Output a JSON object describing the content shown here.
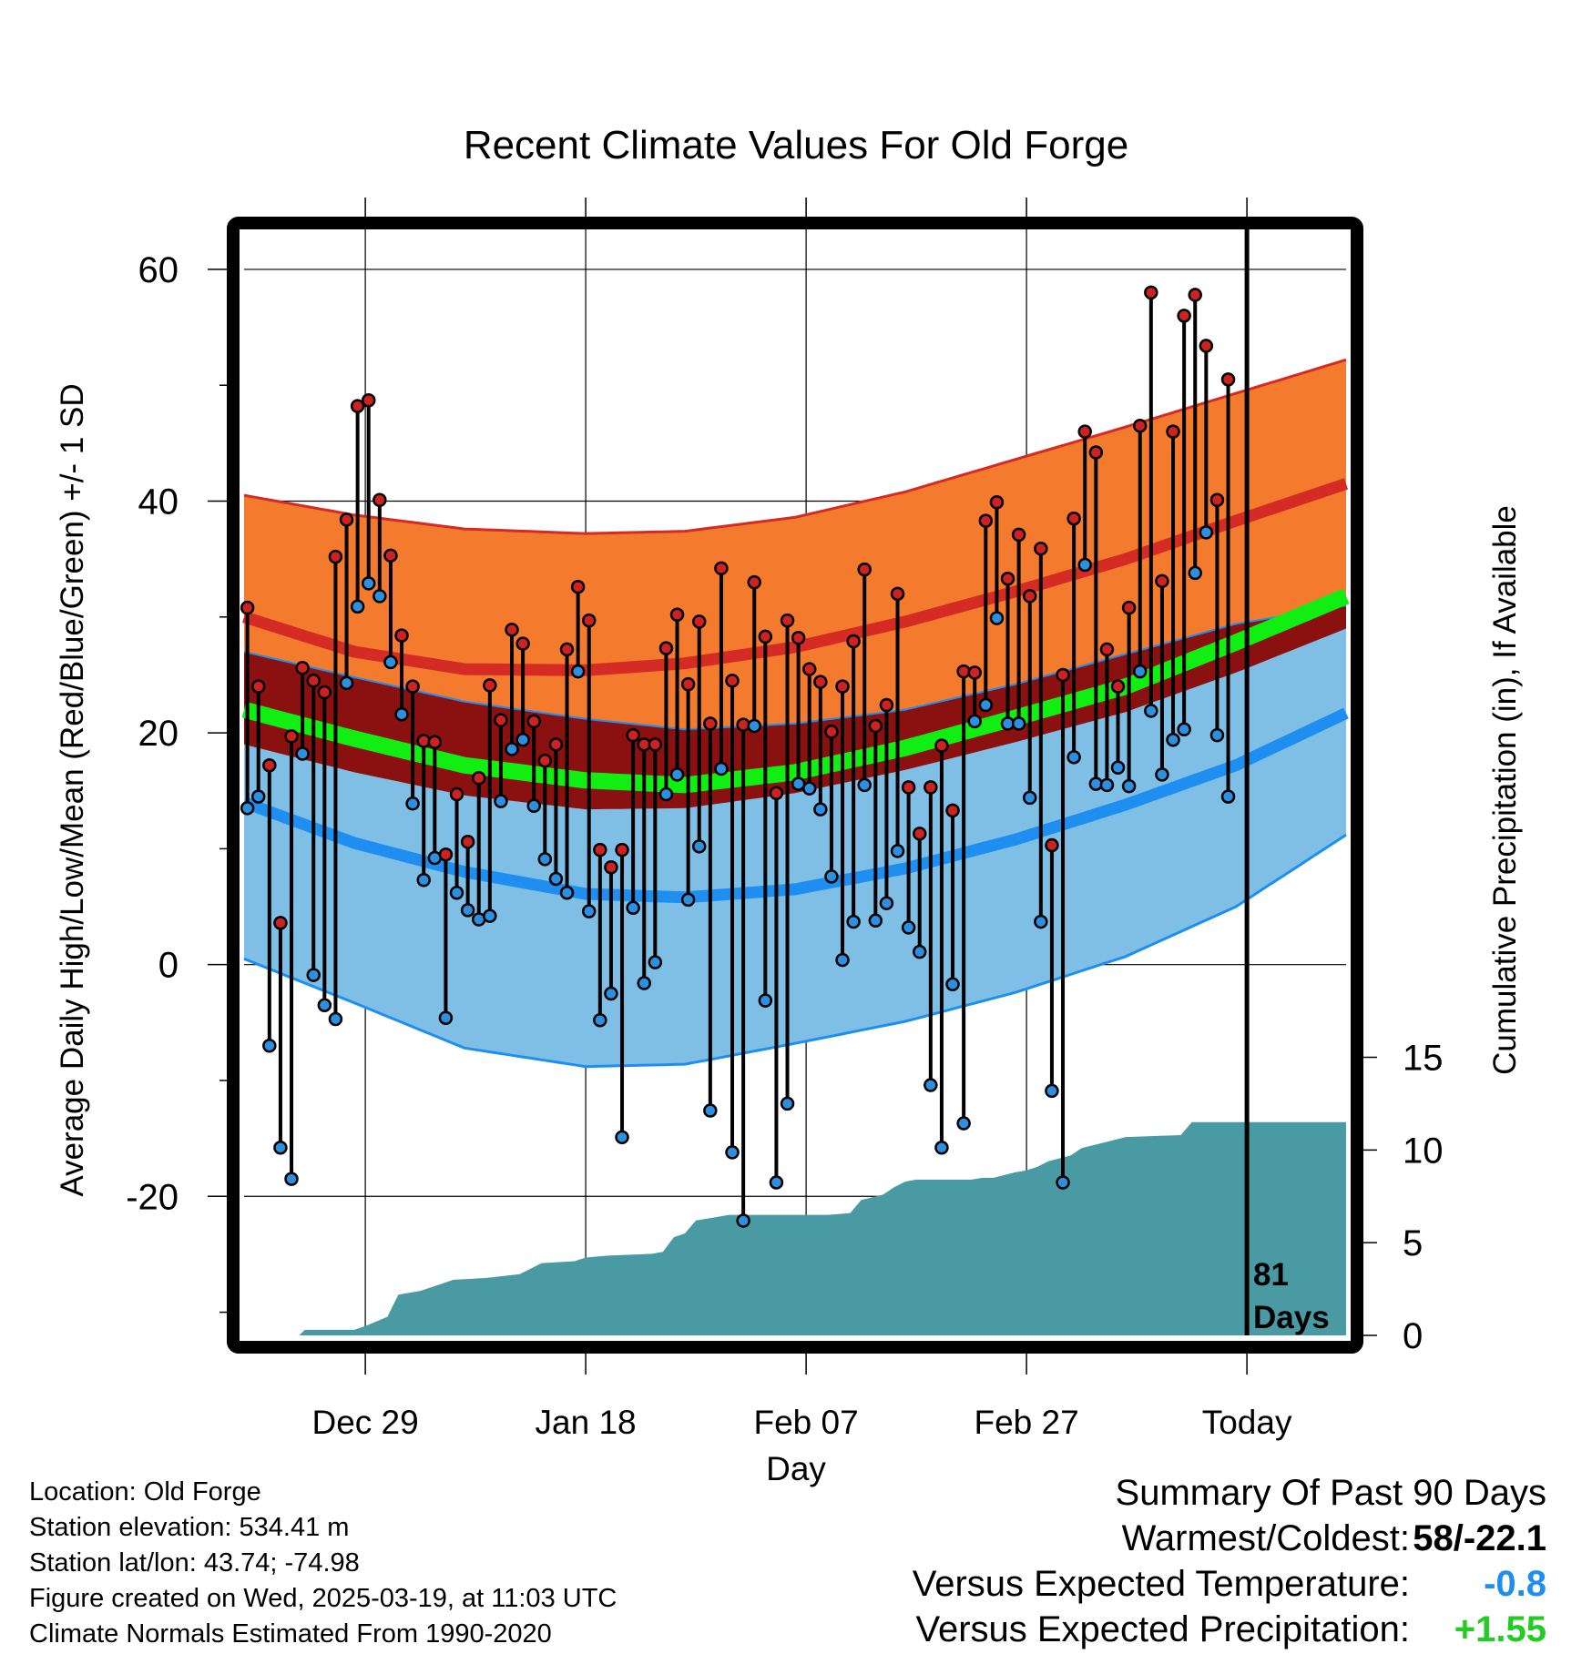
{
  "chart_data": {
    "type": "line",
    "title": "Recent Climate Values For Old Forge",
    "xlabel": "Day",
    "ylabel": "Average Daily High/Low/Mean (Red/Blue/Green) +/- 1 SD",
    "y2label": "Cumulative Precipitation (in), If Available",
    "ylim": [
      -32,
      64
    ],
    "y2lim": [
      0,
      60
    ],
    "xlim": [
      0,
      100
    ],
    "yticks": [
      -20,
      0,
      20,
      40,
      60
    ],
    "y2ticks": [
      0,
      5,
      10,
      15
    ],
    "xticks": [
      {
        "day": 11,
        "label": "Dec 29"
      },
      {
        "day": 31,
        "label": "Jan 18"
      },
      {
        "day": 51,
        "label": "Feb 07"
      },
      {
        "day": 71,
        "label": "Feb 27"
      },
      {
        "day": 91,
        "label": "Today"
      }
    ],
    "marker_day": 91,
    "marker_label_1": "81",
    "marker_label_2": "Days",
    "grid": true,
    "colors": {
      "high_band": "#f47b2e",
      "high_mean": "#d52b25",
      "mean_band": "#8b1010",
      "mean_line": "#11ee11",
      "low_band": "#7fbfe6",
      "low_mean": "#1e8ff0",
      "precip": "#4a9aa4",
      "high_point": "#cc2222",
      "low_point": "#2d8fe0"
    },
    "normals_days": [
      0,
      10,
      20,
      31,
      40,
      50,
      60,
      70,
      80,
      90,
      100
    ],
    "normal_high": [
      30,
      27,
      25.5,
      25.4,
      26,
      27.4,
      29.6,
      32.2,
      35,
      38.3,
      41.5
    ],
    "normal_high_upper": [
      40.5,
      38.8,
      37.6,
      37.2,
      37.4,
      38.6,
      40.8,
      43.6,
      46.4,
      49.3,
      52.2
    ],
    "normal_high_lower": [
      27,
      24.8,
      22.7,
      21.2,
      20.3,
      20.8,
      22,
      24.2,
      26.8,
      29.4,
      31
    ],
    "normal_mean": [
      22,
      19.5,
      17.2,
      15.9,
      15.5,
      16.6,
      18.7,
      21.3,
      24,
      27.8,
      31.8
    ],
    "normal_mean_lower": [
      19,
      16.6,
      14.6,
      13.4,
      13.5,
      14.8,
      16.8,
      19.2,
      21.8,
      25.2,
      29
    ],
    "normal_low": [
      14,
      10.5,
      8,
      6.1,
      5.8,
      6.5,
      8.3,
      10.8,
      13.8,
      17.2,
      21.7
    ],
    "normal_low_lower": [
      0.5,
      -3.3,
      -7.2,
      -8.8,
      -8.6,
      -6.8,
      -4.9,
      -2.4,
      0.7,
      5,
      11.2
    ],
    "high_values": [
      30.8,
      24,
      17.2,
      3.6,
      19.7,
      25.6,
      24.5,
      23.5,
      35.2,
      38.4,
      48.2,
      48.7,
      40.1,
      35.3,
      28.4,
      24,
      19.3,
      19.2,
      9.5,
      14.7,
      10.6,
      16.1,
      24.1,
      21.1,
      28.9,
      27.7,
      21,
      17.6,
      19,
      27.2,
      32.6,
      29.7,
      9.9,
      8.4,
      9.9,
      19.8,
      19,
      19,
      27.3,
      30.2,
      24.2,
      29.6,
      20.8,
      34.2,
      24.5,
      20.7,
      33,
      28.3,
      14.8,
      29.7,
      28.2,
      25.5,
      24.4,
      20.1,
      24,
      27.9,
      34.1,
      20.6,
      22.4,
      32,
      15.3,
      11.3,
      15.3,
      18.9,
      13.3,
      25.3,
      25.2,
      38.3,
      39.9,
      33.3,
      37.1,
      31.8,
      35.9,
      10.3,
      25,
      38.5,
      46,
      44.2,
      27.2,
      24,
      30.8,
      46.5,
      58,
      33.1,
      46,
      56,
      57.8,
      53.4,
      40.1,
      50.5
    ],
    "low_values": [
      13.5,
      14.5,
      -7,
      -15.8,
      -18.5,
      18.2,
      -0.9,
      -3.5,
      -4.7,
      24.3,
      30.9,
      32.9,
      31.8,
      26.1,
      21.6,
      13.9,
      7.3,
      9.2,
      -4.6,
      6.2,
      4.7,
      3.9,
      4.2,
      14.1,
      18.6,
      19.4,
      13.7,
      9.1,
      7.4,
      6.2,
      25.3,
      4.6,
      -4.8,
      -2.5,
      -14.9,
      4.9,
      -1.6,
      0.2,
      14.7,
      16.4,
      5.6,
      10.2,
      -12.6,
      16.9,
      -16.2,
      -22.1,
      20.6,
      -3.1,
      -18.8,
      -12,
      15.6,
      15.2,
      13.4,
      7.6,
      0.4,
      3.7,
      15.5,
      3.8,
      5.3,
      9.8,
      3.2,
      1.1,
      -10.4,
      -15.8,
      -1.7,
      -13.7,
      21,
      22.4,
      29.9,
      20.8,
      20.8,
      14.4,
      3.7,
      -10.9,
      -18.8,
      17.9,
      34.5,
      15.6,
      15.5,
      17,
      15.4,
      25.3,
      21.9,
      16.4,
      19.4,
      20.3,
      33.8,
      37.3,
      19.8,
      14.5
    ],
    "precip_cumulative": [
      [
        0,
        0
      ],
      [
        5,
        0
      ],
      [
        5.5,
        0.3
      ],
      [
        10,
        0.3
      ],
      [
        11,
        0.5
      ],
      [
        13,
        1
      ],
      [
        14,
        2.2
      ],
      [
        16,
        2.4
      ],
      [
        18,
        2.8
      ],
      [
        19,
        3
      ],
      [
        22,
        3.1
      ],
      [
        25,
        3.3
      ],
      [
        26,
        3.6
      ],
      [
        27,
        3.9
      ],
      [
        30,
        4
      ],
      [
        31,
        4.2
      ],
      [
        33,
        4.3
      ],
      [
        37,
        4.4
      ],
      [
        38,
        4.5
      ],
      [
        39,
        5.3
      ],
      [
        40,
        5.5
      ],
      [
        41,
        6.2
      ],
      [
        42,
        6.3
      ],
      [
        43,
        6.4
      ],
      [
        44,
        6.5
      ],
      [
        45,
        6.5
      ],
      [
        46,
        6.5
      ],
      [
        50,
        6.5
      ],
      [
        53,
        6.5
      ],
      [
        55,
        6.6
      ],
      [
        56,
        7.3
      ],
      [
        58,
        7.6
      ],
      [
        59,
        8
      ],
      [
        60,
        8.3
      ],
      [
        61,
        8.4
      ],
      [
        63,
        8.4
      ],
      [
        66,
        8.4
      ],
      [
        67,
        8.5
      ],
      [
        68,
        8.5
      ],
      [
        70,
        8.8
      ],
      [
        71,
        8.9
      ],
      [
        72,
        9.1
      ],
      [
        73,
        9.4
      ],
      [
        75,
        9.7
      ],
      [
        76,
        10.1
      ],
      [
        78,
        10.4
      ],
      [
        80,
        10.7
      ],
      [
        85,
        10.8
      ],
      [
        86,
        11.5
      ],
      [
        91,
        11.5
      ]
    ]
  },
  "info": {
    "location": "Location: Old Forge",
    "elevation": "Station elevation: 534.41 m",
    "latlon": "Station lat/lon: 43.74; -74.98",
    "created": "Figure created on Wed, 2025-03-19, at 11:03 UTC",
    "normals": "Climate Normals Estimated From 1990-2020"
  },
  "summary": {
    "title": "Summary Of Past 90 Days",
    "warmest_label": "Warmest/Coldest:",
    "warmest_value": "58/-22.1",
    "temp_label": "Versus Expected Temperature:",
    "temp_value": "-0.8",
    "temp_color": "#1e8ff0",
    "precip_label": "Versus Expected Precipitation:",
    "precip_value": "+1.55",
    "precip_color": "#22cc22"
  }
}
